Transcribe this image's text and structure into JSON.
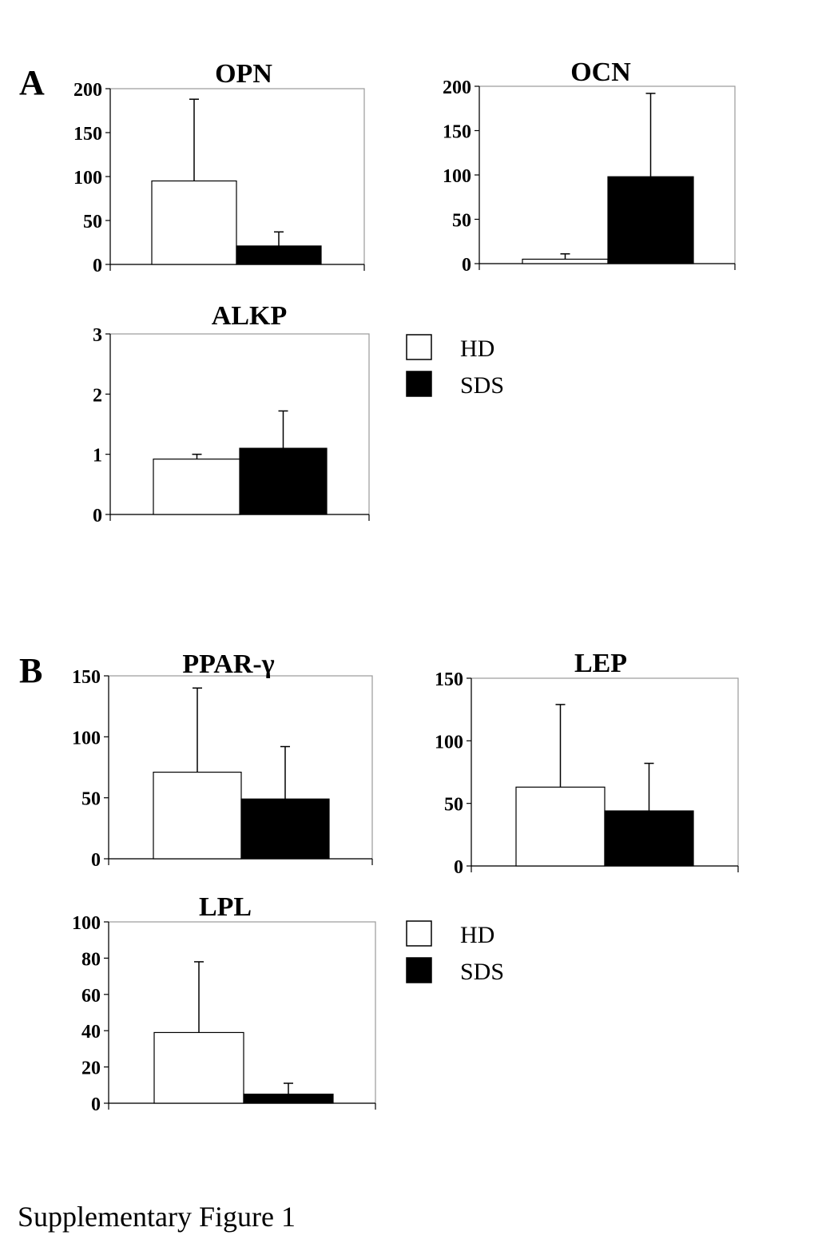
{
  "panels": [
    {
      "letter": "A"
    },
    {
      "letter": "B"
    }
  ],
  "legend": [
    {
      "series": "HD",
      "color": "#ffffff"
    },
    {
      "series": "SDS",
      "color": "#000000"
    }
  ],
  "chart_data": [
    {
      "type": "bar",
      "panel": "A",
      "title": "OPN",
      "categories": [
        "HD",
        "SDS"
      ],
      "series": [
        {
          "name": "HD",
          "value": 95,
          "error": 93
        },
        {
          "name": "SDS",
          "value": 21,
          "error": 16
        }
      ],
      "ylim": [
        0,
        200
      ],
      "yticks": [
        0,
        50,
        100,
        150,
        200
      ],
      "xlabel": "",
      "ylabel": "",
      "grid": false
    },
    {
      "type": "bar",
      "panel": "A",
      "title": "OCN",
      "categories": [
        "HD",
        "SDS"
      ],
      "series": [
        {
          "name": "HD",
          "value": 5,
          "error": 6
        },
        {
          "name": "SDS",
          "value": 98,
          "error": 94
        }
      ],
      "ylim": [
        0,
        200
      ],
      "yticks": [
        0,
        50,
        100,
        150,
        200
      ],
      "xlabel": "",
      "ylabel": "",
      "grid": false
    },
    {
      "type": "bar",
      "panel": "A",
      "title": "ALKP",
      "categories": [
        "HD",
        "SDS"
      ],
      "series": [
        {
          "name": "HD",
          "value": 0.92,
          "error": 0.08
        },
        {
          "name": "SDS",
          "value": 1.1,
          "error": 0.62
        }
      ],
      "ylim": [
        0,
        3
      ],
      "yticks": [
        0,
        1,
        2,
        3
      ],
      "xlabel": "",
      "ylabel": "",
      "grid": false
    },
    {
      "type": "bar",
      "panel": "B",
      "title": "PPAR-γ",
      "categories": [
        "HD",
        "SDS"
      ],
      "series": [
        {
          "name": "HD",
          "value": 71,
          "error": 69
        },
        {
          "name": "SDS",
          "value": 49,
          "error": 43
        }
      ],
      "ylim": [
        0,
        150
      ],
      "yticks": [
        0,
        50,
        100,
        150
      ],
      "xlabel": "",
      "ylabel": "",
      "grid": false
    },
    {
      "type": "bar",
      "panel": "B",
      "title": "LEP",
      "categories": [
        "HD",
        "SDS"
      ],
      "series": [
        {
          "name": "HD",
          "value": 63,
          "error": 66
        },
        {
          "name": "SDS",
          "value": 44,
          "error": 38
        }
      ],
      "ylim": [
        0,
        150
      ],
      "yticks": [
        0,
        50,
        100,
        150
      ],
      "xlabel": "",
      "ylabel": "",
      "grid": false
    },
    {
      "type": "bar",
      "panel": "B",
      "title": "LPL",
      "categories": [
        "HD",
        "SDS"
      ],
      "series": [
        {
          "name": "HD",
          "value": 39,
          "error": 39
        },
        {
          "name": "SDS",
          "value": 5,
          "error": 6
        }
      ],
      "ylim": [
        0,
        100
      ],
      "yticks": [
        0,
        20,
        40,
        60,
        80,
        100
      ],
      "xlabel": "",
      "ylabel": "",
      "grid": false
    }
  ],
  "caption": "Supplementary Figure 1"
}
